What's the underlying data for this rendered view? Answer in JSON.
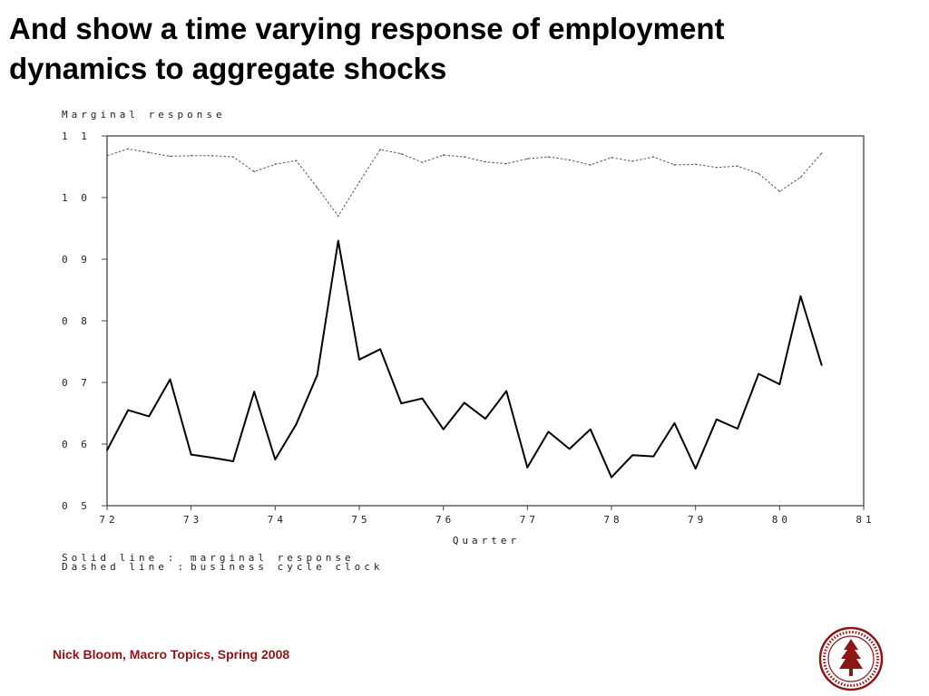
{
  "slide": {
    "title_line1": "And show a time varying response of employment",
    "title_line2": "dynamics to aggregate shocks",
    "footer": "Nick Bloom, Macro Topics, Spring 2008",
    "seal_icon": "stanford-university-seal",
    "accent_color": "#8c1515"
  },
  "chart_data": {
    "type": "line",
    "ylabel": "Marginal response",
    "xlabel": "Quarter",
    "ylim": [
      0.5,
      1.1
    ],
    "xlim": [
      72,
      81
    ],
    "yticks": [
      "0 5",
      "0 6",
      "0 7",
      "0 8",
      "0 9",
      "1 0",
      "1 1"
    ],
    "xticks": [
      "72",
      "73",
      "74",
      "75",
      "76",
      "77",
      "78",
      "79",
      "80",
      "81"
    ],
    "legend": [
      {
        "key": "Solid line",
        "sep": ":",
        "text": "marginal response"
      },
      {
        "key": "Dashed line",
        "sep": ":",
        "text": "business cycle clock"
      }
    ],
    "legend_placement": "bottom-left",
    "grid": false,
    "x": [
      72.0,
      72.25,
      72.5,
      72.75,
      73.0,
      73.25,
      73.5,
      73.75,
      74.0,
      74.25,
      74.5,
      74.75,
      75.0,
      75.25,
      75.5,
      75.75,
      76.0,
      76.25,
      76.5,
      76.75,
      77.0,
      77.25,
      77.5,
      77.75,
      78.0,
      78.25,
      78.5,
      78.75,
      79.0,
      79.25,
      79.5,
      79.75,
      80.0,
      80.25,
      80.5
    ],
    "series": [
      {
        "name": "marginal response",
        "style": "solid",
        "color": "#000000",
        "values": [
          0.59,
          0.655,
          0.645,
          0.705,
          0.583,
          0.578,
          0.572,
          0.685,
          0.575,
          0.632,
          0.712,
          0.93,
          0.737,
          0.754,
          0.666,
          0.674,
          0.624,
          0.667,
          0.641,
          0.686,
          0.562,
          0.62,
          0.592,
          0.624,
          0.546,
          0.582,
          0.58,
          0.634,
          0.56,
          0.64,
          0.625,
          0.714,
          0.697,
          0.84,
          0.728
        ]
      },
      {
        "name": "business cycle clock",
        "style": "dashed",
        "color": "#555555",
        "values": [
          1.068,
          1.079,
          1.073,
          1.067,
          1.068,
          1.068,
          1.066,
          1.042,
          1.054,
          1.06,
          1.016,
          0.97,
          1.025,
          1.078,
          1.071,
          1.057,
          1.069,
          1.066,
          1.058,
          1.055,
          1.063,
          1.066,
          1.061,
          1.053,
          1.065,
          1.059,
          1.066,
          1.053,
          1.054,
          1.049,
          1.051,
          1.039,
          1.01,
          1.033,
          1.072
        ]
      }
    ]
  }
}
